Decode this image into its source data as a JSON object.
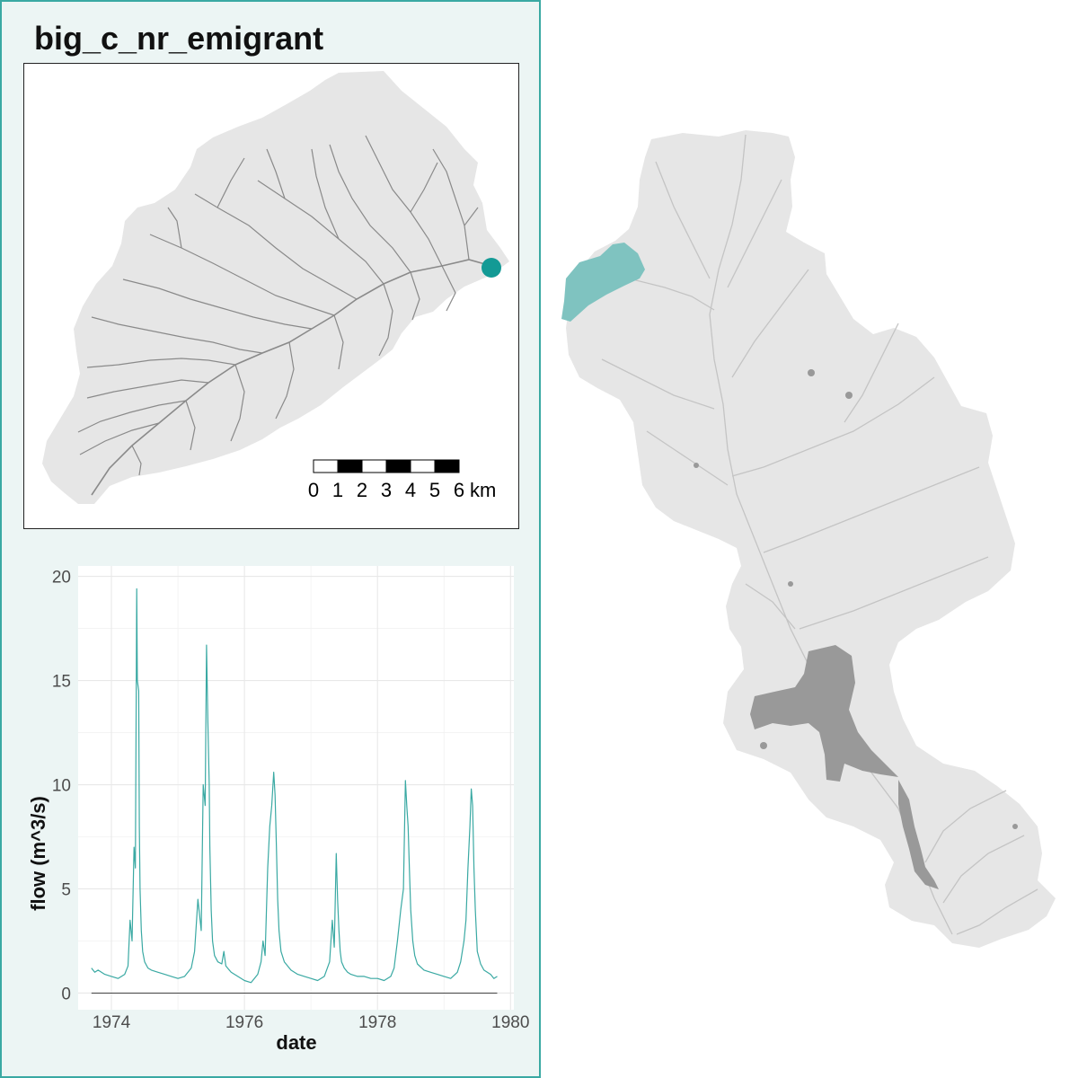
{
  "title": "big_c_nr_emigrant",
  "scale_bar": {
    "ticks": [
      "0",
      "1",
      "2",
      "3",
      "4",
      "5",
      "6"
    ],
    "unit": "km"
  },
  "colors": {
    "accent": "#3aa9a3",
    "gauge_point": "#139a95",
    "highlight_basin": "#7fc3c0",
    "basin_fill": "#e6e6e6",
    "stream": "#8a8a8a",
    "lake": "#999999",
    "panel_bg": "#ecf5f4"
  },
  "chart_data": {
    "type": "line",
    "xlabel": "date",
    "ylabel": "flow (m^3/s)",
    "xlim": [
      1973.5,
      1980.05
    ],
    "ylim": [
      -0.8,
      20.5
    ],
    "x_ticks": [
      1974,
      1976,
      1978,
      1980
    ],
    "y_ticks": [
      0,
      5,
      10,
      15,
      20
    ],
    "x_tick_labels": [
      "1974",
      "1976",
      "1978",
      "1980"
    ],
    "y_tick_labels": [
      "0",
      "5",
      "10",
      "15",
      "20"
    ],
    "baseline": 0,
    "series": [
      {
        "name": "flow",
        "x": [
          1973.7,
          1973.75,
          1973.8,
          1973.9,
          1974.0,
          1974.1,
          1974.2,
          1974.25,
          1974.28,
          1974.31,
          1974.34,
          1974.36,
          1974.38,
          1974.39,
          1974.41,
          1974.42,
          1974.43,
          1974.45,
          1974.47,
          1974.5,
          1974.55,
          1974.6,
          1974.7,
          1974.8,
          1974.9,
          1975.0,
          1975.1,
          1975.2,
          1975.25,
          1975.3,
          1975.35,
          1975.38,
          1975.41,
          1975.43,
          1975.45,
          1975.47,
          1975.48,
          1975.5,
          1975.52,
          1975.55,
          1975.6,
          1975.66,
          1975.69,
          1975.72,
          1975.8,
          1975.9,
          1976.0,
          1976.1,
          1976.2,
          1976.25,
          1976.28,
          1976.31,
          1976.35,
          1976.38,
          1976.41,
          1976.44,
          1976.46,
          1976.48,
          1976.5,
          1976.52,
          1976.55,
          1976.6,
          1976.7,
          1976.8,
          1976.9,
          1977.0,
          1977.1,
          1977.2,
          1977.28,
          1977.32,
          1977.35,
          1977.38,
          1977.4,
          1977.42,
          1977.44,
          1977.46,
          1977.5,
          1977.55,
          1977.6,
          1977.7,
          1977.8,
          1977.9,
          1978.0,
          1978.1,
          1978.2,
          1978.25,
          1978.3,
          1978.35,
          1978.39,
          1978.42,
          1978.44,
          1978.46,
          1978.48,
          1978.5,
          1978.53,
          1978.56,
          1978.6,
          1978.7,
          1978.8,
          1978.9,
          1979.0,
          1979.1,
          1979.2,
          1979.25,
          1979.3,
          1979.33,
          1979.36,
          1979.39,
          1979.41,
          1979.43,
          1979.45,
          1979.47,
          1979.5,
          1979.55,
          1979.6,
          1979.7,
          1979.75,
          1979.8
        ],
        "y": [
          1.2,
          1.0,
          1.1,
          0.9,
          0.8,
          0.7,
          0.9,
          1.3,
          3.5,
          2.5,
          7.0,
          6.0,
          19.4,
          15.0,
          14.5,
          8.0,
          5.0,
          3.0,
          2.0,
          1.5,
          1.2,
          1.1,
          1.0,
          0.9,
          0.8,
          0.7,
          0.8,
          1.2,
          2.0,
          4.5,
          3.0,
          10.0,
          9.0,
          16.7,
          13.0,
          10.0,
          7.0,
          4.0,
          2.5,
          1.8,
          1.5,
          1.4,
          2.0,
          1.3,
          1.0,
          0.8,
          0.6,
          0.5,
          0.9,
          1.5,
          2.5,
          1.8,
          6.0,
          8.0,
          9.0,
          10.6,
          9.5,
          7.0,
          4.5,
          3.0,
          2.0,
          1.5,
          1.1,
          0.9,
          0.8,
          0.7,
          0.6,
          0.8,
          1.5,
          3.5,
          2.2,
          6.7,
          4.5,
          3.0,
          2.0,
          1.5,
          1.2,
          1.0,
          0.9,
          0.8,
          0.8,
          0.7,
          0.7,
          0.6,
          0.8,
          1.2,
          2.5,
          4.0,
          5.0,
          10.2,
          9.0,
          8.0,
          6.0,
          4.0,
          2.5,
          1.8,
          1.4,
          1.1,
          1.0,
          0.9,
          0.8,
          0.7,
          1.0,
          1.5,
          2.5,
          3.5,
          6.0,
          8.0,
          9.8,
          9.0,
          6.0,
          4.0,
          2.0,
          1.4,
          1.1,
          0.9,
          0.7,
          0.8
        ]
      }
    ]
  }
}
